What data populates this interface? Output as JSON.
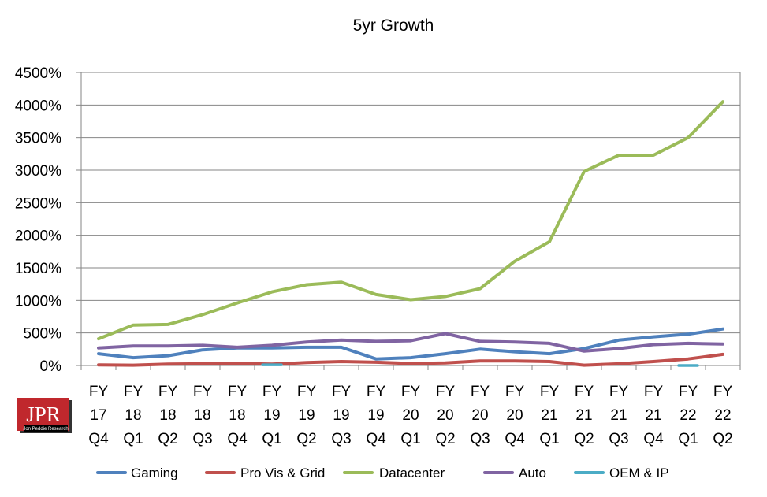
{
  "chart_data": {
    "type": "line",
    "title": "5yr Growth",
    "categories": [
      [
        "FY",
        "17",
        "Q4"
      ],
      [
        "FY",
        "18",
        "Q1"
      ],
      [
        "FY",
        "18",
        "Q2"
      ],
      [
        "FY",
        "18",
        "Q3"
      ],
      [
        "FY",
        "18",
        "Q4"
      ],
      [
        "FY",
        "19",
        "Q1"
      ],
      [
        "FY",
        "19",
        "Q2"
      ],
      [
        "FY",
        "19",
        "Q3"
      ],
      [
        "FY",
        "19",
        "Q4"
      ],
      [
        "FY",
        "20",
        "Q1"
      ],
      [
        "FY",
        "20",
        "Q2"
      ],
      [
        "FY",
        "20",
        "Q3"
      ],
      [
        "FY",
        "20",
        "Q4"
      ],
      [
        "FY",
        "21",
        "Q1"
      ],
      [
        "FY",
        "21",
        "Q2"
      ],
      [
        "FY",
        "21",
        "Q3"
      ],
      [
        "FY",
        "21",
        "Q4"
      ],
      [
        "FY",
        "22",
        "Q1"
      ],
      [
        "FY",
        "22",
        "Q2"
      ]
    ],
    "yticks": [
      "0%",
      "500%",
      "1000%",
      "1500%",
      "2000%",
      "2500%",
      "3000%",
      "3500%",
      "4000%",
      "4500%"
    ],
    "ylim": [
      0,
      4500
    ],
    "grid": true,
    "legend_position": "bottom",
    "series": [
      {
        "name": "Gaming",
        "color": "#4F81BD",
        "values": [
          180,
          120,
          150,
          240,
          270,
          270,
          280,
          280,
          100,
          120,
          180,
          250,
          210,
          180,
          260,
          390,
          440,
          480,
          560
        ]
      },
      {
        "name": "Pro Vis & Grid",
        "color": "#C0504D",
        "values": [
          10,
          5,
          20,
          25,
          30,
          20,
          45,
          60,
          50,
          30,
          40,
          70,
          70,
          60,
          5,
          25,
          60,
          100,
          170
        ]
      },
      {
        "name": "Datacenter",
        "color": "#9BBB59",
        "values": [
          410,
          620,
          630,
          780,
          960,
          1130,
          1240,
          1280,
          1090,
          1010,
          1060,
          1180,
          1600,
          1900,
          2980,
          3230,
          3230,
          3500,
          4050
        ]
      },
      {
        "name": "Auto",
        "color": "#8064A2",
        "values": [
          270,
          300,
          300,
          310,
          280,
          310,
          360,
          390,
          370,
          380,
          490,
          370,
          360,
          340,
          220,
          260,
          320,
          340,
          330
        ]
      },
      {
        "name": "OEM & IP",
        "color": "#4BACC6",
        "values": [
          null,
          null,
          null,
          null,
          null,
          10,
          null,
          null,
          null,
          null,
          null,
          null,
          null,
          null,
          null,
          null,
          null,
          0,
          null
        ]
      }
    ]
  },
  "logo": {
    "letters": "JPR",
    "caption": "Jon Peddie Research",
    "color": "#C0282D"
  }
}
